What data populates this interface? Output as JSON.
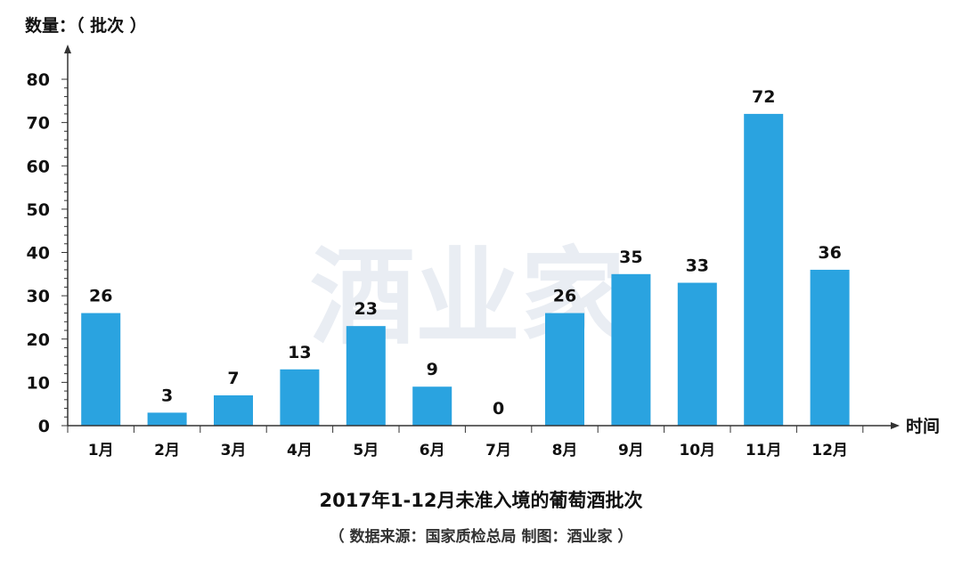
{
  "watermark": "酒业家",
  "chart_data": {
    "type": "bar",
    "title": "2017年1-12月未准入境的葡萄酒批次",
    "subtitle": "（ 数据来源：国家质检总局 制图：酒业家 ）",
    "ylabel": "数量：（ 批次 ）",
    "xlabel": "时间",
    "categories": [
      "1月",
      "2月",
      "3月",
      "4月",
      "5月",
      "6月",
      "7月",
      "8月",
      "9月",
      "10月",
      "11月",
      "12月"
    ],
    "values": [
      26,
      3,
      7,
      13,
      23,
      9,
      0,
      26,
      35,
      33,
      72,
      36
    ],
    "yticks": [
      0,
      10,
      20,
      30,
      40,
      50,
      60,
      70,
      80
    ],
    "ylim": [
      0,
      80
    ],
    "grid": false,
    "bar_color": "#2aa3e0"
  }
}
